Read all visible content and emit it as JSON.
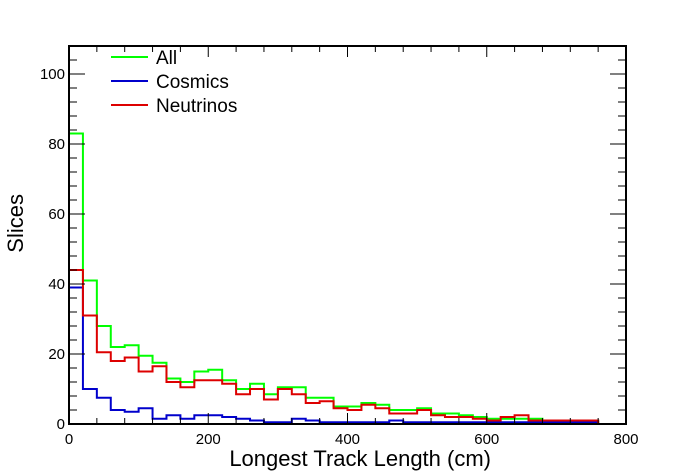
{
  "chart_data": {
    "type": "line",
    "subtype": "step-histogram",
    "xlabel": "Longest Track Length (cm)",
    "ylabel": "Slices",
    "xlim": [
      0,
      800
    ],
    "ylim": [
      0,
      108
    ],
    "x_ticks": [
      0,
      200,
      400,
      600,
      800
    ],
    "y_ticks": [
      0,
      20,
      40,
      60,
      80,
      100
    ],
    "grid": false,
    "legend_position": "top-left",
    "bin_edges": [
      0,
      20,
      40,
      60,
      80,
      100,
      120,
      140,
      160,
      180,
      200,
      220,
      240,
      260,
      280,
      300,
      320,
      340,
      360,
      380,
      400,
      420,
      440,
      460,
      480,
      500,
      520,
      540,
      560,
      580,
      600,
      620,
      640,
      660,
      680,
      700,
      720,
      740,
      760,
      780,
      800
    ],
    "series": [
      {
        "name": "All",
        "color": "#00ff00",
        "values": [
          83,
          41,
          28,
          22,
          22.5,
          19.5,
          17.5,
          13,
          12,
          15,
          15.5,
          12.5,
          10,
          11.5,
          8.5,
          10.5,
          10.5,
          7.5,
          7.5,
          5,
          5,
          6,
          5.5,
          4,
          4,
          4.5,
          3,
          3,
          2.5,
          2,
          1.5,
          1.5,
          1.5,
          1.5,
          1,
          1,
          1,
          1,
          0,
          0
        ]
      },
      {
        "name": "Cosmics",
        "color": "#0000cc",
        "values": [
          39,
          10,
          7.5,
          4,
          3.5,
          4.5,
          1.5,
          2.5,
          1.5,
          2.5,
          2.5,
          2,
          1.5,
          1,
          0.5,
          0.5,
          1.5,
          1,
          0.5,
          0.5,
          0.5,
          0.5,
          0.5,
          1,
          0.5,
          0.5,
          0.5,
          0.5,
          0.5,
          0.5,
          0.5,
          0.5,
          0.5,
          0.5,
          0.5,
          0.5,
          0.5,
          0.5,
          0,
          0
        ]
      },
      {
        "name": "Neutrinos",
        "color": "#dd0000",
        "values": [
          44,
          31,
          20.5,
          18,
          19,
          15,
          16.5,
          12,
          10.5,
          12.5,
          12.5,
          11.5,
          8.5,
          10,
          7,
          10,
          8.5,
          6,
          6.5,
          4.5,
          4,
          5.5,
          4.5,
          3,
          3,
          4,
          2.5,
          2,
          2,
          1.5,
          1,
          2,
          2.5,
          1,
          1,
          1,
          1,
          1,
          0,
          0
        ]
      }
    ]
  }
}
